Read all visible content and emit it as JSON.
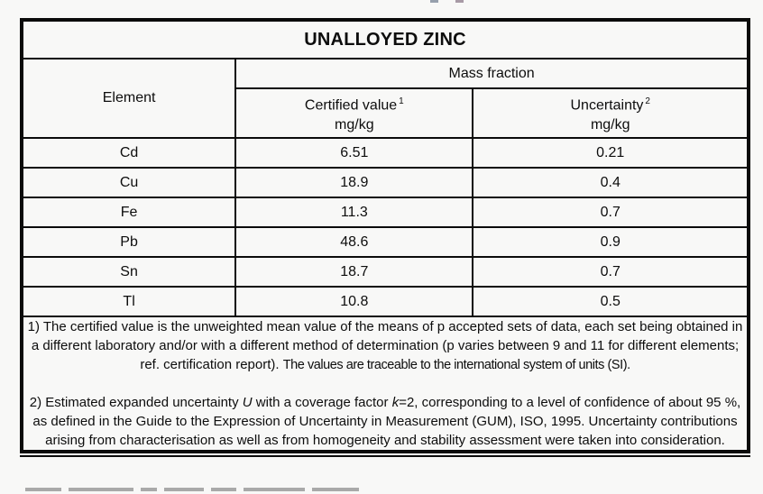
{
  "page": {
    "background": "#f8f8f7",
    "border_color": "#0b0b0b"
  },
  "table": {
    "title": "UNALLOYED ZINC",
    "headers": {
      "element": "Element",
      "mass_fraction": "Mass fraction",
      "certified_value": {
        "label": "Certified value",
        "superscript": "1",
        "unit": "mg/kg"
      },
      "uncertainty": {
        "label": "Uncertainty",
        "superscript": "2",
        "unit": "mg/kg"
      }
    },
    "rows": [
      {
        "element": "Cd",
        "certified_value": "6.51",
        "uncertainty": "0.21"
      },
      {
        "element": "Cu",
        "certified_value": "18.9",
        "uncertainty": "0.4"
      },
      {
        "element": "Fe",
        "certified_value": "11.3",
        "uncertainty": "0.7"
      },
      {
        "element": "Pb",
        "certified_value": "48.6",
        "uncertainty": "0.9"
      },
      {
        "element": "Sn",
        "certified_value": "18.7",
        "uncertainty": "0.7"
      },
      {
        "element": "Tl",
        "certified_value": "10.8",
        "uncertainty": "0.5"
      }
    ]
  },
  "footnotes": {
    "note1": {
      "main": "1) The certified value is the unweighted mean value of the means of p accepted sets of data, each set being obtained in a different laboratory and/or with a different method of determination (p varies between 9 and 11 for different elements; ref. certification report). ",
      "traceability": "The values are traceable to the international system of units (SI)."
    },
    "note2": {
      "part1": "2) Estimated expanded uncertainty ",
      "u_symbol": "U",
      "part2": " with a coverage factor ",
      "k_symbol": "k",
      "part3": "=2, corresponding to a level of confidence of about 95 %, as defined in the Guide to the Expression of Uncertainty in Measurement (GUM), ISO, 1995. Uncertainty contributions arising from characterisation as well as from homogeneity and stability assessment were taken into consideration."
    }
  }
}
